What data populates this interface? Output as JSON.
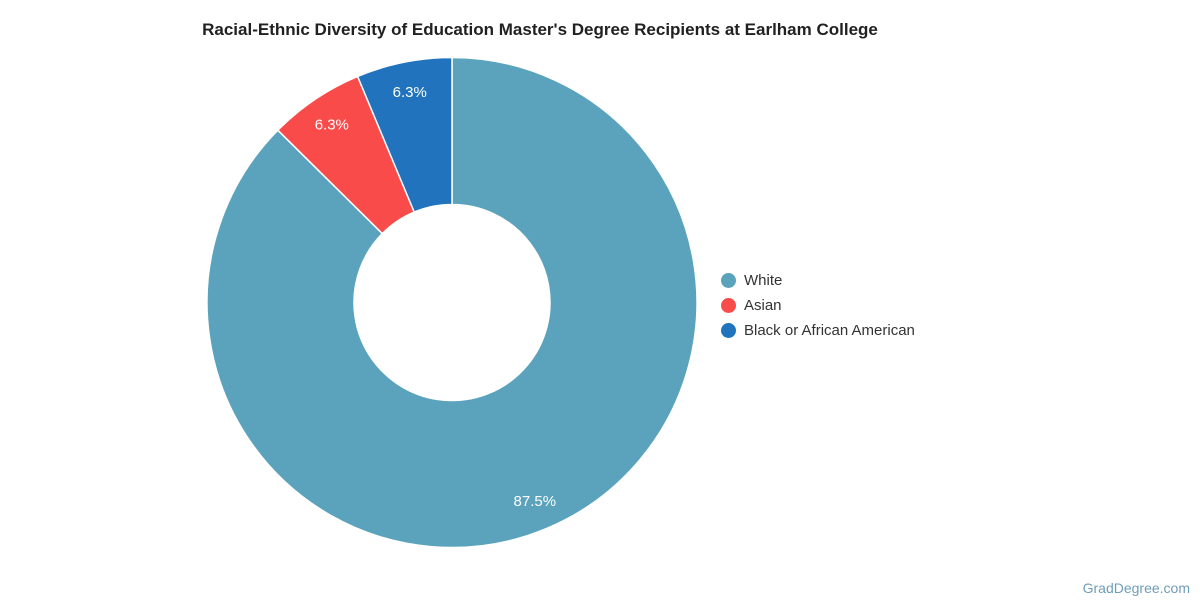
{
  "page": {
    "watermark": "GradDegree.com",
    "background_color": "#ffffff"
  },
  "chart": {
    "title": "Racial-Ethnic Diversity of Education Master's Degree Recipients at Earlham College"
  },
  "chart_data": {
    "type": "pie",
    "subtype": "donut",
    "title": "Racial-Ethnic Diversity of Education Master's Degree Recipients at Earlham College",
    "categories": [
      "White",
      "Asian",
      "Black or African American"
    ],
    "values": [
      87.5,
      6.3,
      6.3
    ],
    "value_labels": [
      "87.5%",
      "6.3%",
      "6.3%"
    ],
    "colors": [
      "#5BA3BC",
      "#FA4B4B",
      "#2173BD"
    ],
    "start_angle_deg": 0,
    "direction": "clockwise",
    "slice_label_color": "#ffffff",
    "slice_border_color": "#ffffff",
    "legend_position": "right",
    "legend": [
      "White",
      "Asian",
      "Black or African American"
    ]
  },
  "legend": {
    "items": [
      {
        "label": "White",
        "color": "#5BA3BC"
      },
      {
        "label": "Asian",
        "color": "#FA4B4B"
      },
      {
        "label": "Black or African American",
        "color": "#2173BD"
      }
    ]
  }
}
